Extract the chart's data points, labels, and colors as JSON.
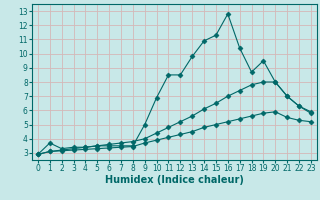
{
  "title": "",
  "xlabel": "Humidex (Indice chaleur)",
  "ylabel": "",
  "bg_color": "#c8e8e8",
  "grid_color": "#d4b8b8",
  "line_color": "#006868",
  "xlim": [
    -0.5,
    23.5
  ],
  "ylim": [
    2.5,
    13.5
  ],
  "xticks": [
    0,
    1,
    2,
    3,
    4,
    5,
    6,
    7,
    8,
    9,
    10,
    11,
    12,
    13,
    14,
    15,
    16,
    17,
    18,
    19,
    20,
    21,
    22,
    23
  ],
  "yticks": [
    3,
    4,
    5,
    6,
    7,
    8,
    9,
    10,
    11,
    12,
    13
  ],
  "line1_x": [
    0,
    1,
    2,
    3,
    4,
    5,
    6,
    7,
    8,
    9,
    10,
    11,
    12,
    13,
    14,
    15,
    16,
    17,
    18,
    19,
    20,
    21,
    22,
    23
  ],
  "line1_y": [
    2.9,
    3.7,
    3.3,
    3.4,
    3.4,
    3.5,
    3.5,
    3.5,
    3.5,
    5.0,
    6.9,
    8.5,
    8.5,
    9.8,
    10.9,
    11.3,
    12.8,
    10.4,
    8.7,
    9.5,
    8.0,
    7.0,
    6.3,
    5.9
  ],
  "line2_x": [
    0,
    1,
    2,
    3,
    4,
    5,
    6,
    7,
    8,
    9,
    10,
    11,
    12,
    13,
    14,
    15,
    16,
    17,
    18,
    19,
    20,
    21,
    22,
    23
  ],
  "line2_y": [
    2.9,
    3.1,
    3.2,
    3.3,
    3.4,
    3.5,
    3.6,
    3.7,
    3.8,
    4.0,
    4.4,
    4.8,
    5.2,
    5.6,
    6.1,
    6.5,
    7.0,
    7.4,
    7.8,
    8.0,
    8.0,
    7.0,
    6.3,
    5.8
  ],
  "line3_x": [
    0,
    1,
    2,
    3,
    4,
    5,
    6,
    7,
    8,
    9,
    10,
    11,
    12,
    13,
    14,
    15,
    16,
    17,
    18,
    19,
    20,
    21,
    22,
    23
  ],
  "line3_y": [
    2.9,
    3.1,
    3.15,
    3.2,
    3.25,
    3.3,
    3.35,
    3.4,
    3.45,
    3.7,
    3.9,
    4.1,
    4.3,
    4.5,
    4.8,
    5.0,
    5.2,
    5.4,
    5.6,
    5.8,
    5.9,
    5.5,
    5.3,
    5.2
  ],
  "marker": "D",
  "markersize": 2.5,
  "linewidth": 0.8,
  "tick_fontsize": 5.5,
  "label_fontsize": 7
}
